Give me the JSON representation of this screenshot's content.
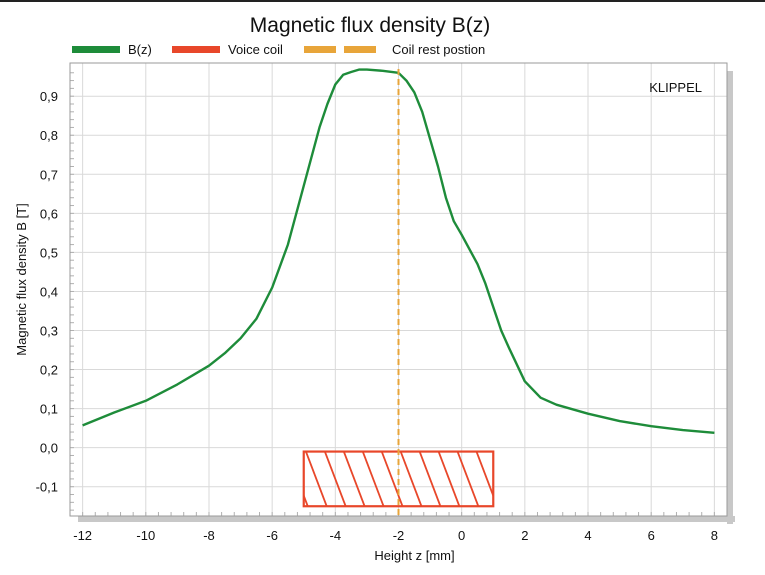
{
  "chart_data": {
    "type": "line",
    "title": "Magnetic flux density B(z)",
    "xlabel": "Height z [mm]",
    "ylabel": "Magnetic flux density B [T]",
    "watermark": "KLIPPEL",
    "xlim": [
      -12.4,
      8.4
    ],
    "ylim": [
      -0.175,
      0.985
    ],
    "x_ticks": [
      -12,
      -10,
      -8,
      -6,
      -4,
      -2,
      0,
      2,
      4,
      6,
      8
    ],
    "x_tick_labels": [
      "-12",
      "-10",
      "-8",
      "-6",
      "-4",
      "-2",
      "0",
      "2",
      "4",
      "6",
      "8"
    ],
    "y_ticks": [
      -0.1,
      0,
      0.1,
      0.2,
      0.3,
      0.4,
      0.5,
      0.6,
      0.7,
      0.8,
      0.9
    ],
    "y_tick_labels": [
      "-0,1",
      "0,0",
      "0,1",
      "0,2",
      "0,3",
      "0,4",
      "0,5",
      "0,6",
      "0,7",
      "0,8",
      "0,9"
    ],
    "grid": true,
    "legend_position": "top-left",
    "series": [
      {
        "name": "B(z)",
        "color": "#1e8c3a",
        "x": [
          -12,
          -11,
          -10,
          -9,
          -8,
          -7.5,
          -7,
          -6.5,
          -6,
          -5.5,
          -5,
          -4.5,
          -4.25,
          -4,
          -3.75,
          -3.5,
          -3.25,
          -3,
          -2.5,
          -2,
          -1.75,
          -1.5,
          -1.25,
          -1,
          -0.75,
          -0.5,
          -0.25,
          0,
          0.5,
          0.75,
          1,
          1.25,
          1.5,
          2,
          2.5,
          3,
          4,
          5,
          6,
          7,
          8
        ],
        "y": [
          0.057,
          0.09,
          0.12,
          0.162,
          0.21,
          0.242,
          0.28,
          0.33,
          0.41,
          0.52,
          0.67,
          0.82,
          0.88,
          0.93,
          0.955,
          0.962,
          0.968,
          0.968,
          0.965,
          0.96,
          0.94,
          0.91,
          0.86,
          0.79,
          0.72,
          0.64,
          0.58,
          0.545,
          0.47,
          0.42,
          0.36,
          0.3,
          0.255,
          0.17,
          0.128,
          0.11,
          0.087,
          0.068,
          0.055,
          0.045,
          0.038
        ]
      }
    ],
    "voice_coil": {
      "name": "Voice coil",
      "color": "#e8472a",
      "x_range": [
        -5,
        1
      ],
      "y_range": [
        -0.15,
        -0.01
      ]
    },
    "coil_rest_position": {
      "name": "Coil rest postion",
      "color": "#e8a53a",
      "x": -2
    }
  }
}
